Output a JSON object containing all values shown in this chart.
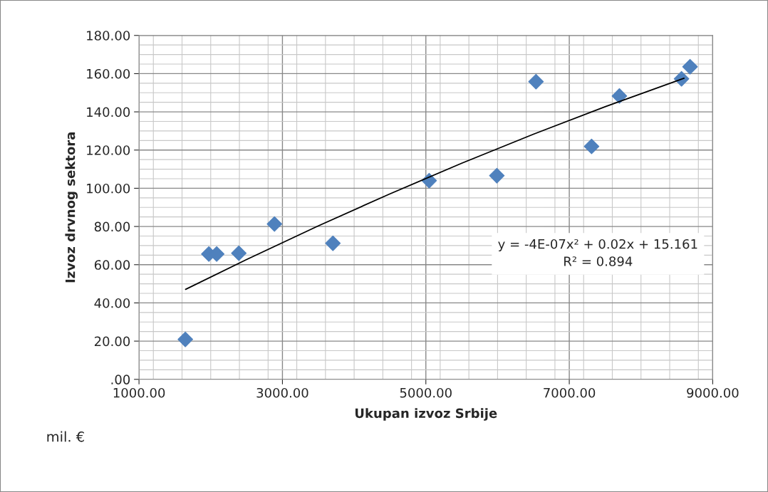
{
  "chart_data": {
    "type": "scatter",
    "xlabel": "Ukupan izvoz Srbije",
    "ylabel": "Izvoz drvnog sektora",
    "series": [
      {
        "color": "#4f81bd",
        "marker": "diamond",
        "x": [
          1646,
          1974,
          2083,
          2392,
          2889,
          3704,
          5046,
          5990,
          6536,
          7311,
          7699,
          8565,
          8684
        ],
        "values": [
          20.9,
          65.6,
          65.6,
          66.0,
          81.3,
          71.2,
          104.0,
          106.6,
          155.8,
          121.9,
          148.3,
          157.3,
          163.6
        ]
      },
      {
        "type": "line",
        "color": "#000000",
        "marker": "none",
        "line_style": "solid",
        "x": [
          1650,
          2500,
          3500,
          4500,
          5500,
          6500,
          7500,
          8600
        ],
        "values": [
          47.1,
          62.7,
          80.3,
          97.1,
          113.1,
          128.3,
          142.7,
          157.6
        ]
      }
    ],
    "xlim": [
      1000,
      9000
    ],
    "xticks": [
      {
        "value": 1000,
        "label": "1000.00"
      },
      {
        "value": 3000,
        "label": "3000.00"
      },
      {
        "value": 5000,
        "label": "5000.00"
      },
      {
        "value": 7000,
        "label": "7000.00"
      },
      {
        "value": 9000,
        "label": "9000.00"
      }
    ],
    "ylim": [
      0,
      180
    ],
    "yticks": [
      {
        "value": 0,
        "label": ".00"
      },
      {
        "value": 20,
        "label": "20.00"
      },
      {
        "value": 40,
        "label": "40.00"
      },
      {
        "value": 60,
        "label": "60.00"
      },
      {
        "value": 80,
        "label": "80.00"
      },
      {
        "value": 100,
        "label": "100.00"
      },
      {
        "value": 120,
        "label": "120.00"
      },
      {
        "value": 140,
        "label": "140.00"
      },
      {
        "value": 160,
        "label": "160.00"
      },
      {
        "value": 180,
        "label": "180.00"
      }
    ],
    "grid": true,
    "annotations": [
      "y = -4E-07x² + 0.02x + 15.161\nR² = 0.894",
      "mil. €"
    ]
  }
}
